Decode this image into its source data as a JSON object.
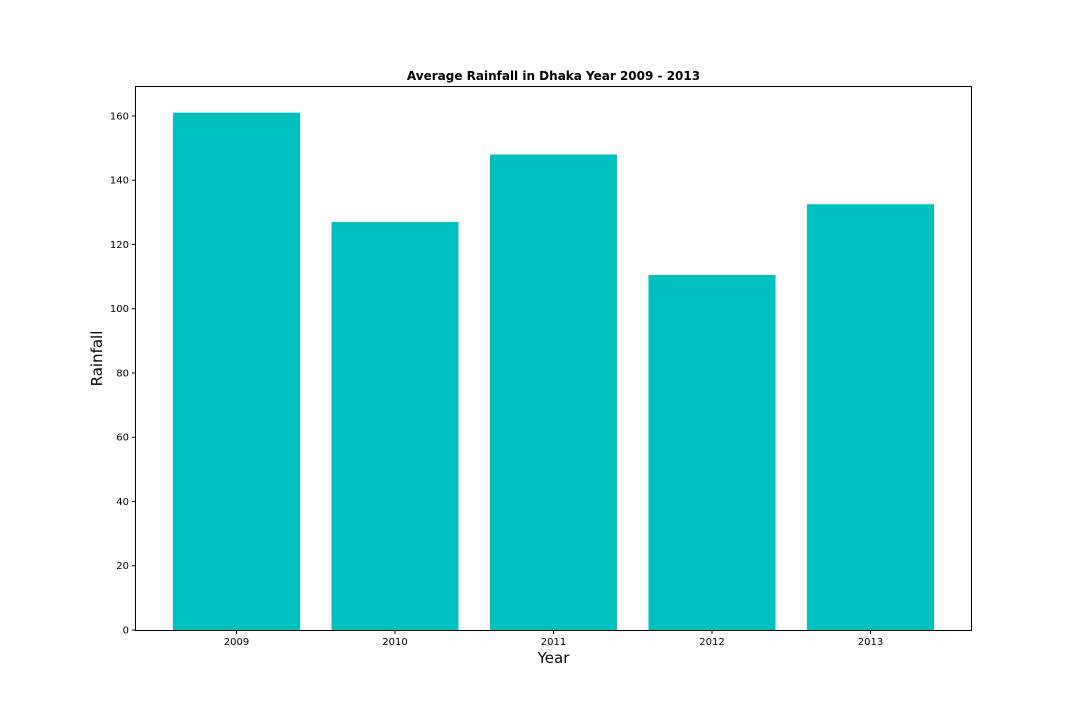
{
  "chart_data": {
    "type": "bar",
    "title": "Average Rainfall in Dhaka Year 2009 - 2013",
    "xlabel": "Year",
    "ylabel": "Rainfall",
    "categories": [
      "2009",
      "2010",
      "2011",
      "2012",
      "2013"
    ],
    "values": [
      161,
      127,
      148,
      110.5,
      132.5
    ],
    "ylim": [
      0,
      169
    ],
    "yticks": [
      0,
      20,
      40,
      60,
      80,
      100,
      120,
      140,
      160
    ],
    "grid": false,
    "legend": "none",
    "bar_color": "#00BFBF"
  }
}
